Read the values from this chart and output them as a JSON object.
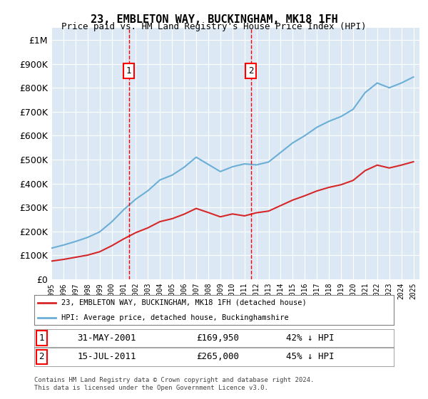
{
  "title": "23, EMBLETON WAY, BUCKINGHAM, MK18 1FH",
  "subtitle": "Price paid vs. HM Land Registry's House Price Index (HPI)",
  "hpi_color": "#6baed6",
  "price_color": "#d62728",
  "background_color": "#dce9f5",
  "plot_bg_color": "#dce9f5",
  "ylim": [
    0,
    1050000
  ],
  "yticks": [
    0,
    100000,
    200000,
    300000,
    400000,
    500000,
    600000,
    700000,
    800000,
    900000,
    1000000
  ],
  "ytick_labels": [
    "£0",
    "£100K",
    "£200K",
    "£300K",
    "£400K",
    "£500K",
    "£600K",
    "£700K",
    "£800K",
    "£900K",
    "£1M"
  ],
  "legend_label_price": "23, EMBLETON WAY, BUCKINGHAM, MK18 1FH (detached house)",
  "legend_label_hpi": "HPI: Average price, detached house, Buckinghamshire",
  "sale1_date": "31-MAY-2001",
  "sale1_price": 169950,
  "sale1_pct": "42% ↓ HPI",
  "sale2_date": "15-JUL-2011",
  "sale2_price": 265000,
  "sale2_pct": "45% ↓ HPI",
  "footer": "Contains HM Land Registry data © Crown copyright and database right 2024.\nThis data is licensed under the Open Government Licence v3.0.",
  "sale1_year": 2001.42,
  "sale2_year": 2011.54,
  "sale1_hpi_value": 291000,
  "sale2_hpi_value": 482000
}
